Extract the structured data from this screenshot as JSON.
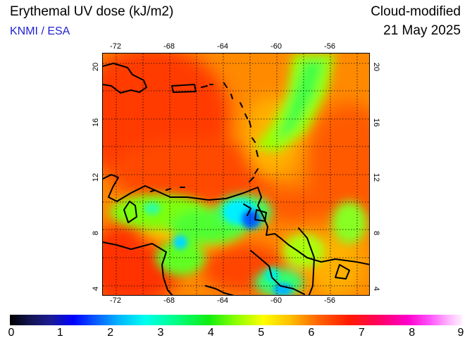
{
  "header": {
    "title": "Erythemal UV dose (kJ/m2)",
    "source": "KNMI / ESA",
    "product": "Cloud-modified",
    "date": "21 May 2025"
  },
  "map": {
    "lon_range": [
      -73,
      -53
    ],
    "lat_range": [
      3.5,
      21
    ],
    "lon_ticks": [
      "-72",
      "-68",
      "-64",
      "-60",
      "-56"
    ],
    "lat_ticks": [
      "4",
      "8",
      "12",
      "16",
      "20"
    ],
    "grid": true
  },
  "colorbar": {
    "labels": [
      "0",
      "1",
      "2",
      "3",
      "4",
      "5",
      "6",
      "7",
      "8",
      "9"
    ],
    "range": [
      0,
      9
    ]
  }
}
